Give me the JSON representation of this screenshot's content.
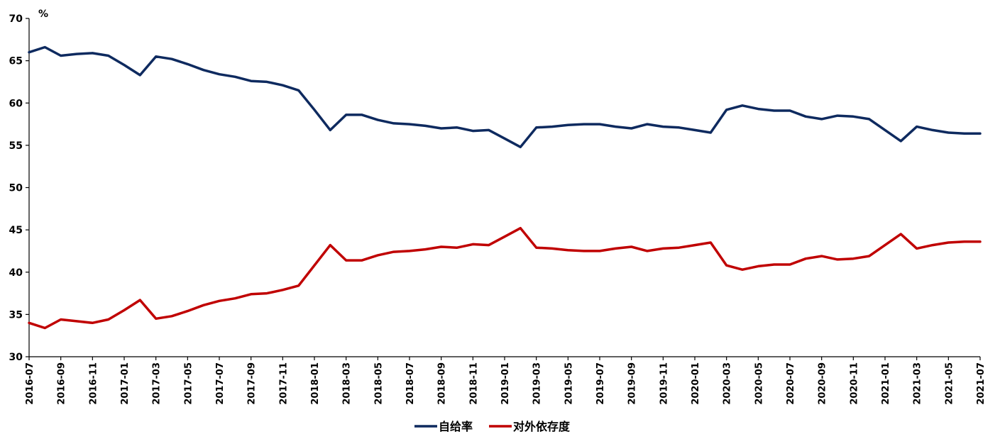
{
  "chart_data": {
    "type": "line",
    "ylabel": "%",
    "ylim": [
      30,
      70
    ],
    "yticks": [
      30,
      35,
      40,
      45,
      50,
      55,
      60,
      65,
      70
    ],
    "x": [
      "2016-07",
      "2016-08",
      "2016-09",
      "2016-10",
      "2016-11",
      "2016-12",
      "2017-01",
      "2017-02",
      "2017-03",
      "2017-04",
      "2017-05",
      "2017-06",
      "2017-07",
      "2017-08",
      "2017-09",
      "2017-10",
      "2017-11",
      "2017-12",
      "2018-01",
      "2018-02",
      "2018-03",
      "2018-04",
      "2018-05",
      "2018-06",
      "2018-07",
      "2018-08",
      "2018-09",
      "2018-10",
      "2018-11",
      "2018-12",
      "2019-01",
      "2019-02",
      "2019-03",
      "2019-04",
      "2019-05",
      "2019-06",
      "2019-07",
      "2019-08",
      "2019-09",
      "2019-10",
      "2019-11",
      "2019-12",
      "2020-01",
      "2020-02",
      "2020-03",
      "2020-04",
      "2020-05",
      "2020-06",
      "2020-07",
      "2020-08",
      "2020-09",
      "2020-10",
      "2020-11",
      "2020-12",
      "2021-01",
      "2021-02",
      "2021-03",
      "2021-04",
      "2021-05",
      "2021-06",
      "2021-07"
    ],
    "xtick_labels": [
      "2016-07",
      "2016-09",
      "2016-11",
      "2017-01",
      "2017-03",
      "2017-05",
      "2017-07",
      "2017-09",
      "2017-11",
      "2018-01",
      "2018-03",
      "2018-05",
      "2018-07",
      "2018-09",
      "2018-11",
      "2019-01",
      "2019-03",
      "2019-05",
      "2019-07",
      "2019-09",
      "2019-11",
      "2020-01",
      "2020-03",
      "2020-05",
      "2020-07",
      "2020-09",
      "2020-11",
      "2021-01",
      "2021-03",
      "2021-05",
      "2021-07"
    ],
    "series": [
      {
        "name": "自给率",
        "color": "#0e2a5f",
        "values": [
          66.0,
          66.6,
          65.6,
          65.8,
          65.9,
          65.6,
          64.5,
          63.3,
          65.5,
          65.2,
          64.6,
          63.9,
          63.4,
          63.1,
          62.6,
          62.5,
          62.1,
          61.5,
          59.2,
          56.8,
          58.6,
          58.6,
          58.0,
          57.6,
          57.5,
          57.3,
          57.0,
          57.1,
          56.7,
          56.8,
          55.8,
          54.8,
          57.1,
          57.2,
          57.4,
          57.5,
          57.5,
          57.2,
          57.0,
          57.5,
          57.2,
          57.1,
          56.8,
          56.5,
          59.2,
          59.7,
          59.3,
          59.1,
          59.1,
          58.4,
          58.1,
          58.5,
          58.4,
          58.1,
          56.8,
          55.5,
          57.2,
          56.8,
          56.5,
          56.4,
          56.4
        ]
      },
      {
        "name": "对外依存度",
        "color": "#c00000",
        "values": [
          34.0,
          33.4,
          34.4,
          34.2,
          34.0,
          34.4,
          35.5,
          36.7,
          34.5,
          34.8,
          35.4,
          36.1,
          36.6,
          36.9,
          37.4,
          37.5,
          37.9,
          38.4,
          40.8,
          43.2,
          41.4,
          41.4,
          42.0,
          42.4,
          42.5,
          42.7,
          43.0,
          42.9,
          43.3,
          43.2,
          44.2,
          45.2,
          42.9,
          42.8,
          42.6,
          42.5,
          42.5,
          42.8,
          43.0,
          42.5,
          42.8,
          42.9,
          43.2,
          43.5,
          40.8,
          40.3,
          40.7,
          40.9,
          40.9,
          41.6,
          41.9,
          41.5,
          41.6,
          41.9,
          43.2,
          44.5,
          42.8,
          43.2,
          43.5,
          43.6,
          43.6
        ]
      }
    ],
    "grid": false,
    "legend_position": "bottom-center"
  }
}
